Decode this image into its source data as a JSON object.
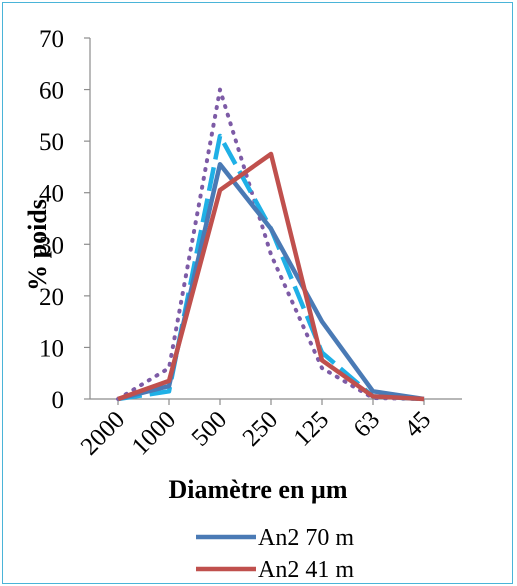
{
  "chart_data": {
    "type": "line",
    "categories": [
      "2000",
      "1000",
      "500",
      "250",
      "125",
      "63",
      "45"
    ],
    "xlabel": "Diamètre  en µm",
    "ylabel": "% poids",
    "ylim": [
      0,
      70
    ],
    "yticks": [
      "0",
      "10",
      "20",
      "30",
      "40",
      "50",
      "60",
      "70"
    ],
    "grid": false,
    "legend_position": "bottom",
    "series": [
      {
        "name": "An2 70 m",
        "color": "#4a7ab5",
        "dash": "solid",
        "values": [
          0,
          2.5,
          45.5,
          33,
          15,
          1.5,
          0
        ]
      },
      {
        "name": "An2 41 m",
        "color": "#c0504d",
        "dash": "solid",
        "values": [
          0,
          3.5,
          40.5,
          47.5,
          7.5,
          0.5,
          0
        ]
      },
      {
        "color": "#1fb0e6",
        "dash": "long-dash",
        "values": [
          0,
          1.5,
          51,
          33,
          9,
          0.5,
          0
        ]
      },
      {
        "color": "#7d5ba6",
        "dash": "dotted",
        "values": [
          0,
          6,
          60,
          28,
          6,
          0.2,
          0
        ]
      }
    ]
  }
}
